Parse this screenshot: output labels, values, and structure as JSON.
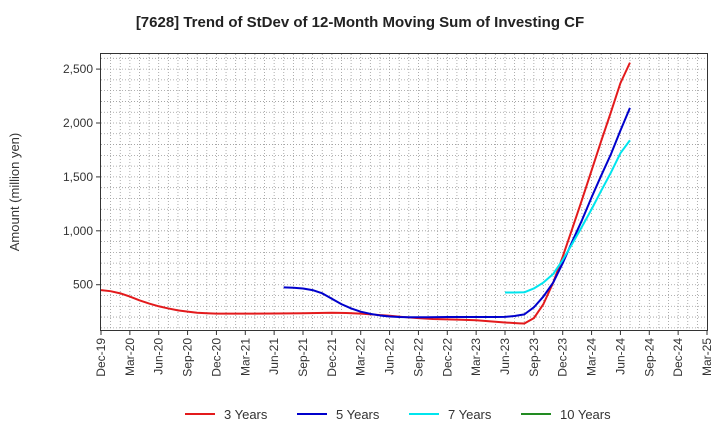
{
  "chart_data": {
    "type": "line",
    "title": "[7628]  Trend of StDev of 12-Month Moving Sum of Investing CF",
    "ylabel": "Amount (million yen)",
    "xlabel": "",
    "ylim": [
      80,
      2640
    ],
    "yticks": [
      500,
      1000,
      1500,
      2000,
      2500
    ],
    "ytick_labels": [
      "500",
      "1,000",
      "1,500",
      "2,000",
      "2,500"
    ],
    "categories": [
      "Dec-19",
      "Mar-20",
      "Jun-20",
      "Sep-20",
      "Dec-20",
      "Mar-21",
      "Jun-21",
      "Sep-21",
      "Dec-21",
      "Mar-22",
      "Jun-22",
      "Sep-22",
      "Dec-22",
      "Mar-23",
      "Jun-23",
      "Sep-23",
      "Dec-23",
      "Mar-24",
      "Jun-24",
      "Sep-24",
      "Dec-24",
      "Mar-25"
    ],
    "grid": true,
    "legend_position": "bottom",
    "series": [
      {
        "name": "3 Years",
        "color": "#e31a1c",
        "points": [
          [
            0,
            450
          ],
          [
            0.33,
            440
          ],
          [
            0.67,
            420
          ],
          [
            1,
            390
          ],
          [
            1.33,
            355
          ],
          [
            1.67,
            325
          ],
          [
            2,
            300
          ],
          [
            2.33,
            280
          ],
          [
            2.67,
            262
          ],
          [
            3,
            250
          ],
          [
            3.33,
            240
          ],
          [
            3.67,
            235
          ],
          [
            4,
            232
          ],
          [
            5,
            232
          ],
          [
            6,
            233
          ],
          [
            7,
            235
          ],
          [
            8,
            240
          ],
          [
            8.5,
            238
          ],
          [
            9,
            232
          ],
          [
            9.5,
            222
          ],
          [
            10,
            212
          ],
          [
            10.5,
            200
          ],
          [
            11,
            190
          ],
          [
            11.5,
            182
          ],
          [
            12,
            178
          ],
          [
            12.5,
            175
          ],
          [
            13,
            170
          ],
          [
            13.5,
            160
          ],
          [
            14,
            150
          ],
          [
            14.5,
            142
          ],
          [
            14.67,
            140
          ],
          [
            15,
            190
          ],
          [
            15.33,
            320
          ],
          [
            15.67,
            520
          ],
          [
            16,
            760
          ],
          [
            16.33,
            1020
          ],
          [
            16.67,
            1290
          ],
          [
            17,
            1560
          ],
          [
            17.33,
            1830
          ],
          [
            17.67,
            2100
          ],
          [
            18,
            2370
          ],
          [
            18.33,
            2560
          ]
        ]
      },
      {
        "name": "5 Years",
        "color": "#0000cc",
        "points": [
          [
            6.33,
            475
          ],
          [
            6.67,
            472
          ],
          [
            7,
            465
          ],
          [
            7.33,
            450
          ],
          [
            7.67,
            420
          ],
          [
            8,
            370
          ],
          [
            8.33,
            320
          ],
          [
            8.67,
            280
          ],
          [
            9,
            250
          ],
          [
            9.33,
            230
          ],
          [
            9.67,
            215
          ],
          [
            10,
            205
          ],
          [
            10.33,
            200
          ],
          [
            10.67,
            198
          ],
          [
            11,
            198
          ],
          [
            11.33,
            198
          ],
          [
            11.67,
            199
          ],
          [
            12,
            200
          ],
          [
            12.33,
            200
          ],
          [
            12.67,
            200
          ],
          [
            13,
            200
          ],
          [
            13.33,
            200
          ],
          [
            13.67,
            200
          ],
          [
            14,
            202
          ],
          [
            14.33,
            210
          ],
          [
            14.67,
            225
          ],
          [
            15,
            290
          ],
          [
            15.33,
            390
          ],
          [
            15.67,
            520
          ],
          [
            16,
            700
          ],
          [
            16.33,
            900
          ],
          [
            16.67,
            1100
          ],
          [
            17,
            1310
          ],
          [
            17.33,
            1510
          ],
          [
            17.67,
            1710
          ],
          [
            18,
            1930
          ],
          [
            18.33,
            2140
          ]
        ]
      },
      {
        "name": "7 Years",
        "color": "#00e5ee",
        "points": [
          [
            14,
            428
          ],
          [
            14.33,
            428
          ],
          [
            14.67,
            430
          ],
          [
            15,
            465
          ],
          [
            15.33,
            520
          ],
          [
            15.67,
            600
          ],
          [
            16,
            730
          ],
          [
            16.33,
            880
          ],
          [
            16.67,
            1040
          ],
          [
            17,
            1200
          ],
          [
            17.33,
            1370
          ],
          [
            17.67,
            1540
          ],
          [
            18,
            1720
          ],
          [
            18.33,
            1840
          ]
        ]
      },
      {
        "name": "10 Years",
        "color": "#228b22",
        "points": []
      }
    ]
  }
}
